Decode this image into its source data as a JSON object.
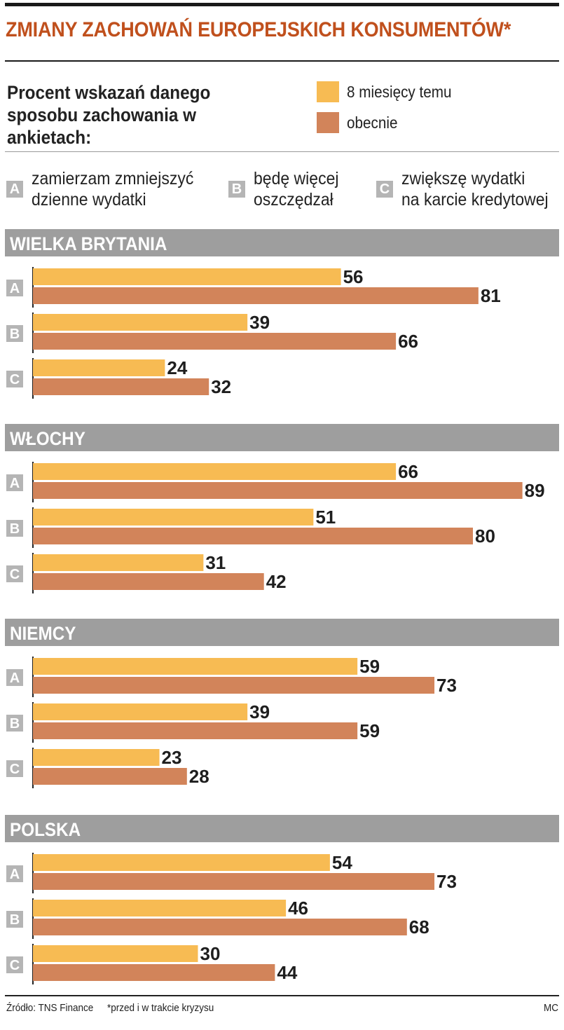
{
  "title": "ZMIANY ZACHOWAŃ EUROPEJSKICH KONSUMENTÓW*",
  "subtitle_lines": [
    "Procent wskazań danego",
    "sposobu zachowania w ankietach:"
  ],
  "legend": [
    {
      "label": "8 miesięcy temu",
      "color": "#f7bb53"
    },
    {
      "label": "obecnie",
      "color": "#d2845a"
    }
  ],
  "categories": [
    {
      "letter": "A",
      "lines": [
        "zamierzam zmniejszyć",
        "dzienne wydatki"
      ]
    },
    {
      "letter": "B",
      "lines": [
        "będę więcej",
        "oszczędzał"
      ]
    },
    {
      "letter": "C",
      "lines": [
        "zwiększę wydatki",
        "na karcie kredytowej"
      ]
    }
  ],
  "colors": {
    "title": "#c0501d",
    "header_bg": "#9e9e9e",
    "box_bg": "#b5b5b5"
  },
  "chart_data": {
    "type": "bar",
    "orientation": "horizontal",
    "title": "ZMIANY ZACHOWAŃ EUROPEJSKICH KONSUMENTÓW*",
    "unit": "%",
    "categories": [
      "A",
      "B",
      "C"
    ],
    "groups": [
      {
        "name": "WIELKA BRYTANIA",
        "series": [
          {
            "name": "8 miesięcy temu",
            "values": [
              56,
              39,
              24
            ]
          },
          {
            "name": "obecnie",
            "values": [
              81,
              66,
              32
            ]
          }
        ]
      },
      {
        "name": "WŁOCHY",
        "series": [
          {
            "name": "8 miesięcy temu",
            "values": [
              66,
              51,
              31
            ]
          },
          {
            "name": "obecnie",
            "values": [
              89,
              80,
              42
            ]
          }
        ]
      },
      {
        "name": "NIEMCY",
        "series": [
          {
            "name": "8 miesięcy temu",
            "values": [
              59,
              39,
              23
            ]
          },
          {
            "name": "obecnie",
            "values": [
              73,
              59,
              28
            ]
          }
        ]
      },
      {
        "name": "POLSKA",
        "series": [
          {
            "name": "8 miesięcy temu",
            "values": [
              54,
              46,
              30
            ]
          },
          {
            "name": "obecnie",
            "values": [
              73,
              68,
              44
            ]
          }
        ]
      }
    ],
    "xlim": [
      0,
      100
    ]
  },
  "footer": {
    "source": "Źródło: TNS Finance",
    "note": "*przed i w trakcie kryzysu",
    "author": "MC"
  }
}
